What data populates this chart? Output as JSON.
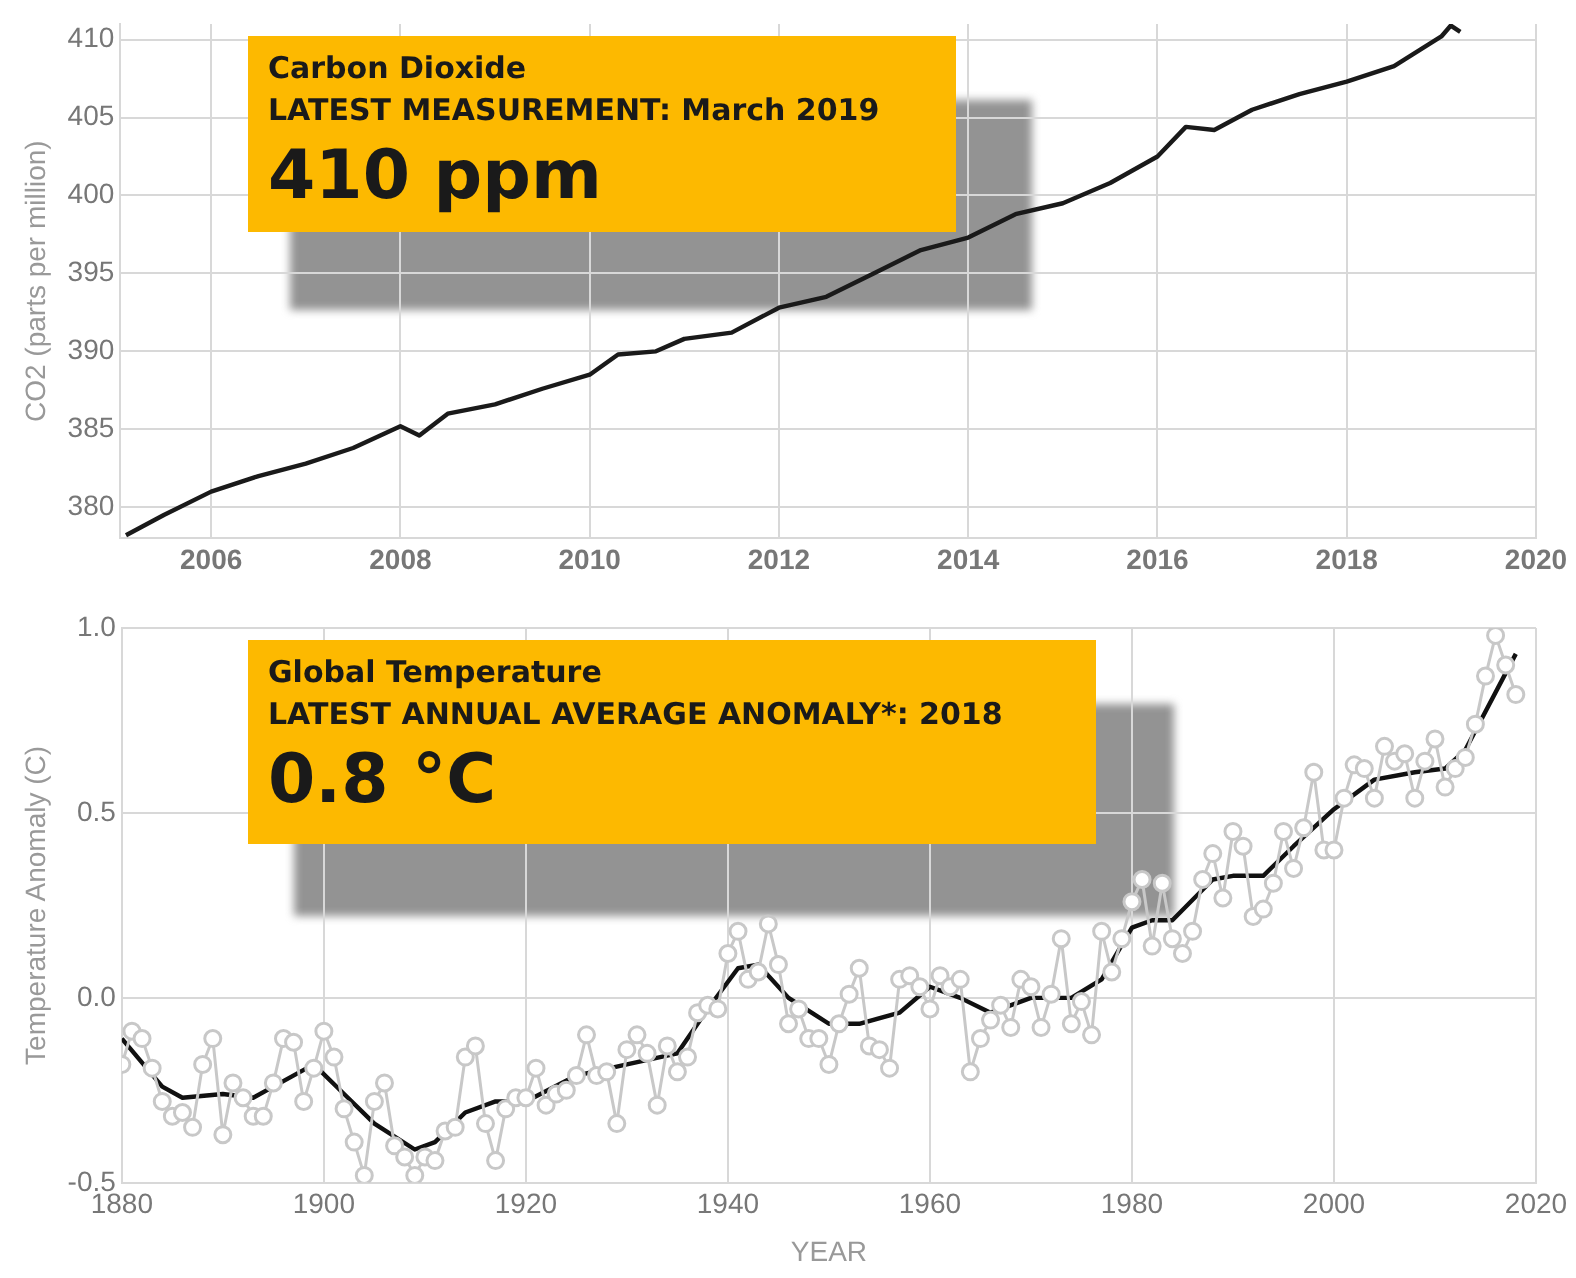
{
  "chart_data": [
    {
      "type": "line",
      "title": "Carbon Dioxide",
      "annotations": [
        "LATEST MEASUREMENT:  March 2019",
        "410 ppm"
      ],
      "ylabel": "CO2 (parts per million)",
      "xlim": [
        2005.04,
        2020
      ],
      "xticks": [
        2006,
        2008,
        2010,
        2012,
        2014,
        2016,
        2018,
        2020
      ],
      "ylim": [
        378,
        411
      ],
      "yticks": [
        380,
        385,
        390,
        395,
        400,
        405,
        410
      ],
      "grid": true,
      "series": [
        {
          "color": "#1a1a1a",
          "marker": "none",
          "x": [
            2005.1,
            2005.5,
            2006.0,
            2006.5,
            2007.0,
            2007.5,
            2008.0,
            2008.2,
            2008.5,
            2009.0,
            2009.5,
            2010.0,
            2010.3,
            2010.7,
            2011.0,
            2011.5,
            2012.0,
            2012.5,
            2013.0,
            2013.5,
            2014.0,
            2014.5,
            2015.0,
            2015.5,
            2016.0,
            2016.3,
            2016.6,
            2017.0,
            2017.5,
            2018.0,
            2018.5,
            2019.0,
            2019.1,
            2019.2
          ],
          "values": [
            378.2,
            379.5,
            381,
            382,
            382.8,
            383.8,
            385.2,
            384.6,
            386,
            386.6,
            387.6,
            388.5,
            389.8,
            390,
            390.8,
            391.2,
            392.8,
            393.5,
            395,
            396.5,
            397.3,
            398.8,
            399.5,
            400.8,
            402.5,
            404.4,
            404.2,
            405.5,
            406.5,
            407.3,
            408.3,
            410.2,
            410.9,
            410.5
          ]
        }
      ]
    },
    {
      "type": "line",
      "title": "Global Temperature",
      "annotations": [
        "LATEST ANNUAL AVERAGE ANOMALY*:  2018",
        "0.8 °C"
      ],
      "xlabel": "YEAR",
      "ylabel": "Temperature Anomaly (C)",
      "xlim": [
        1880,
        2020
      ],
      "xticks": [
        1880,
        1900,
        1920,
        1940,
        1960,
        1980,
        2000,
        2020
      ],
      "ylim": [
        -0.5,
        1.0
      ],
      "yticks": [
        -0.5,
        {
          "value": 0,
          "label": "0.0"
        },
        0.5,
        {
          "value": 1,
          "label": "1.0"
        }
      ],
      "grid": true,
      "series": [
        {
          "color": "#c8c8c8",
          "marker": "circle",
          "x": [
            1880,
            1881,
            1882,
            1883,
            1884,
            1885,
            1886,
            1887,
            1888,
            1889,
            1890,
            1891,
            1892,
            1893,
            1894,
            1895,
            1896,
            1897,
            1898,
            1899,
            1900,
            1901,
            1902,
            1903,
            1904,
            1905,
            1906,
            1907,
            1908,
            1909,
            1910,
            1911,
            1912,
            1913,
            1914,
            1915,
            1916,
            1917,
            1918,
            1919,
            1920,
            1921,
            1922,
            1923,
            1924,
            1925,
            1926,
            1927,
            1928,
            1929,
            1930,
            1931,
            1932,
            1933,
            1934,
            1935,
            1936,
            1937,
            1938,
            1939,
            1940,
            1941,
            1942,
            1943,
            1944,
            1945,
            1946,
            1947,
            1948,
            1949,
            1950,
            1951,
            1952,
            1953,
            1954,
            1955,
            1956,
            1957,
            1958,
            1959,
            1960,
            1961,
            1962,
            1963,
            1964,
            1965,
            1966,
            1967,
            1968,
            1969,
            1970,
            1971,
            1972,
            1973,
            1974,
            1975,
            1976,
            1977,
            1978,
            1979,
            1980,
            1981,
            1982,
            1983,
            1984,
            1985,
            1986,
            1987,
            1988,
            1989,
            1990,
            1991,
            1992,
            1993,
            1994,
            1995,
            1996,
            1997,
            1998,
            1999,
            2000,
            2001,
            2002,
            2003,
            2004,
            2005,
            2006,
            2007,
            2008,
            2009,
            2010,
            2011,
            2012,
            2013,
            2014,
            2015,
            2016,
            2017,
            2018
          ],
          "values": [
            -0.18,
            -0.09,
            -0.11,
            -0.19,
            -0.28,
            -0.32,
            -0.31,
            -0.35,
            -0.18,
            -0.11,
            -0.37,
            -0.23,
            -0.27,
            -0.32,
            -0.32,
            -0.23,
            -0.11,
            -0.12,
            -0.28,
            -0.19,
            -0.09,
            -0.16,
            -0.3,
            -0.39,
            -0.48,
            -0.28,
            -0.23,
            -0.4,
            -0.43,
            -0.48,
            -0.43,
            -0.44,
            -0.36,
            -0.35,
            -0.16,
            -0.13,
            -0.34,
            -0.44,
            -0.3,
            -0.27,
            -0.27,
            -0.19,
            -0.29,
            -0.26,
            -0.25,
            -0.21,
            -0.1,
            -0.21,
            -0.2,
            -0.34,
            -0.14,
            -0.1,
            -0.15,
            -0.29,
            -0.13,
            -0.2,
            -0.16,
            -0.04,
            -0.02,
            -0.03,
            0.12,
            0.18,
            0.05,
            0.07,
            0.2,
            0.09,
            -0.07,
            -0.03,
            -0.11,
            -0.11,
            -0.18,
            -0.07,
            0.01,
            0.08,
            -0.13,
            -0.14,
            -0.19,
            0.05,
            0.06,
            0.03,
            -0.03,
            0.06,
            0.03,
            0.05,
            -0.2,
            -0.11,
            -0.06,
            -0.02,
            -0.08,
            0.05,
            0.03,
            -0.08,
            0.01,
            0.16,
            -0.07,
            -0.01,
            -0.1,
            0.18,
            0.07,
            0.16,
            0.26,
            0.32,
            0.14,
            0.31,
            0.16,
            0.12,
            0.18,
            0.32,
            0.39,
            0.27,
            0.45,
            0.41,
            0.22,
            0.24,
            0.31,
            0.45,
            0.35,
            0.46,
            0.61,
            0.4,
            0.4,
            0.54,
            0.63,
            0.62,
            0.54,
            0.68,
            0.64,
            0.66,
            0.54,
            0.64,
            0.7,
            0.57,
            0.62,
            0.65,
            0.74,
            0.87,
            0.98,
            0.9,
            0.82
          ]
        },
        {
          "color": "#111111",
          "marker": "none",
          "x": [
            1880,
            1884,
            1886,
            1890,
            1893,
            1895,
            1899,
            1902,
            1905,
            1909,
            1911,
            1914,
            1917,
            1920,
            1925,
            1930,
            1935,
            1938,
            1941,
            1943,
            1946,
            1950,
            1953,
            1957,
            1960,
            1963,
            1966,
            1970,
            1974,
            1977,
            1980,
            1982,
            1984,
            1988,
            1990,
            1993,
            1996,
            2000,
            2004,
            2008,
            2011,
            2013,
            2018
          ],
          "values": [
            -0.11,
            -0.24,
            -0.27,
            -0.26,
            -0.27,
            -0.24,
            -0.18,
            -0.26,
            -0.34,
            -0.41,
            -0.39,
            -0.31,
            -0.28,
            -0.28,
            -0.21,
            -0.18,
            -0.15,
            -0.03,
            0.08,
            0.09,
            0.0,
            -0.07,
            -0.07,
            -0.04,
            0.03,
            0.0,
            -0.04,
            0.0,
            0.0,
            0.05,
            0.19,
            0.21,
            0.21,
            0.32,
            0.33,
            0.33,
            0.41,
            0.51,
            0.59,
            0.61,
            0.62,
            0.67,
            0.93
          ]
        }
      ]
    }
  ]
}
